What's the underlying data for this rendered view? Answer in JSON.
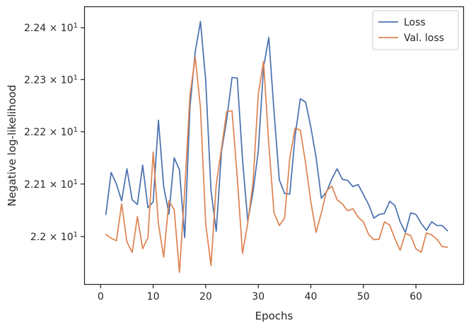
{
  "chart_data": {
    "type": "line",
    "title": "",
    "xlabel": "Epochs",
    "ylabel": "Negative log-likelihood",
    "y_scale": "log",
    "xlim": [
      -3.0,
      69.0
    ],
    "ylim": [
      21.91,
      22.44
    ],
    "x_ticks": [
      0,
      10,
      20,
      30,
      40,
      50,
      60
    ],
    "y_ticks": [
      {
        "value": 22.0,
        "base": "2.2",
        "exp": "1"
      },
      {
        "value": 22.1,
        "base": "2.21",
        "exp": "1"
      },
      {
        "value": 22.2,
        "base": "2.22",
        "exp": "1"
      },
      {
        "value": 22.3,
        "base": "2.23",
        "exp": "1"
      },
      {
        "value": 22.4,
        "base": "2.24",
        "exp": "1"
      }
    ],
    "times_symbol": "×",
    "grid": false,
    "legend_position": "top-right",
    "x": [
      1,
      2,
      3,
      4,
      5,
      6,
      7,
      8,
      9,
      10,
      11,
      12,
      13,
      14,
      15,
      16,
      17,
      18,
      19,
      20,
      21,
      22,
      23,
      24,
      25,
      26,
      27,
      28,
      29,
      30,
      31,
      32,
      33,
      34,
      35,
      36,
      37,
      38,
      39,
      40,
      41,
      42,
      43,
      44,
      45,
      46,
      47,
      48,
      49,
      50,
      51,
      52,
      53,
      54,
      55,
      56,
      57,
      58,
      59,
      60,
      61,
      62,
      63,
      64,
      65,
      66
    ],
    "series": [
      {
        "name": "Loss",
        "color": "#4c72b0",
        "values": [
          22.042,
          22.122,
          22.1,
          22.068,
          22.129,
          22.07,
          22.061,
          22.136,
          22.055,
          22.066,
          22.222,
          22.095,
          22.043,
          22.15,
          22.127,
          21.998,
          22.247,
          22.354,
          22.412,
          22.298,
          22.088,
          22.01,
          22.162,
          22.224,
          22.304,
          22.303,
          22.147,
          22.029,
          22.085,
          22.163,
          22.324,
          22.381,
          22.238,
          22.108,
          22.082,
          22.081,
          22.191,
          22.263,
          22.257,
          22.209,
          22.151,
          22.073,
          22.085,
          22.11,
          22.129,
          22.109,
          22.107,
          22.095,
          22.099,
          22.08,
          22.061,
          22.035,
          22.042,
          22.044,
          22.067,
          22.059,
          22.028,
          22.008,
          22.045,
          22.042,
          22.025,
          22.012,
          22.028,
          22.021,
          22.021,
          22.011
        ]
      },
      {
        "name": "Val. loss",
        "color": "#dd8452",
        "values": [
          22.004,
          21.997,
          21.992,
          22.062,
          21.99,
          21.97,
          22.038,
          21.977,
          21.998,
          22.161,
          22.024,
          21.961,
          22.068,
          22.051,
          21.932,
          22.088,
          22.27,
          22.343,
          22.246,
          22.024,
          21.945,
          22.099,
          22.168,
          22.239,
          22.24,
          22.113,
          21.968,
          22.026,
          22.103,
          22.272,
          22.335,
          22.176,
          22.045,
          22.021,
          22.035,
          22.15,
          22.207,
          22.203,
          22.14,
          22.066,
          22.008,
          22.045,
          22.087,
          22.096,
          22.07,
          22.062,
          22.049,
          22.053,
          22.037,
          22.028,
          22.004,
          21.994,
          21.995,
          22.028,
          22.022,
          21.996,
          21.974,
          22.006,
          22.002,
          21.977,
          21.97,
          22.007,
          22.003,
          21.995,
          21.981,
          21.98
        ]
      }
    ]
  }
}
